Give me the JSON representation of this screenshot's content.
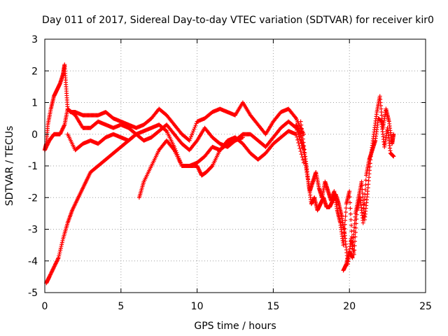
{
  "chart_data": {
    "type": "scatter",
    "title": "Day 011 of 2017, Sidereal Day-to-day VTEC variation (SDTVAR) for receiver kir0",
    "xlabel": "GPS time / hours",
    "ylabel": "SDTVAR / TECUs",
    "xlim": [
      0,
      25
    ],
    "ylim": [
      -5,
      3
    ],
    "xticks": [
      0,
      5,
      10,
      15,
      20,
      25
    ],
    "xtick_labels": [
      "0",
      "5",
      "10",
      "15",
      "20",
      "25"
    ],
    "yticks": [
      -5,
      -4,
      -3,
      -2,
      -1,
      0,
      1,
      2,
      3
    ],
    "ytick_labels": [
      "-5",
      "-4",
      "-3",
      "-2",
      "-1",
      "0",
      "1",
      "2",
      "3"
    ],
    "grid": true,
    "legend": "none",
    "marker": "+",
    "color": "#ff0000",
    "series": [
      {
        "x": [
          0.0,
          0.1,
          0.2,
          0.4,
          0.6,
          0.8,
          1.0,
          1.2,
          1.3,
          1.4,
          1.5,
          1.7,
          2.0,
          2.5,
          3.0,
          3.5,
          4.0,
          4.5,
          5.0,
          5.5,
          6.0,
          6.5,
          7.0,
          7.5,
          8.0,
          8.5,
          9.0,
          9.5,
          10.0,
          10.5,
          11.0,
          11.5,
          12.0,
          12.5,
          13.0,
          13.5,
          14.0,
          14.5,
          15.0,
          15.5,
          16.0,
          16.5,
          17.0
        ],
        "y": [
          -0.5,
          -0.3,
          0.3,
          0.8,
          1.2,
          1.4,
          1.6,
          1.9,
          2.2,
          1.5,
          0.8,
          0.7,
          0.7,
          0.6,
          0.6,
          0.6,
          0.7,
          0.5,
          0.4,
          0.3,
          0.2,
          0.3,
          0.5,
          0.8,
          0.6,
          0.3,
          0.0,
          -0.2,
          0.4,
          0.5,
          0.7,
          0.8,
          0.7,
          0.6,
          1.0,
          0.6,
          0.3,
          0.0,
          0.4,
          0.7,
          0.8,
          0.5,
          0.0
        ]
      },
      {
        "x": [
          0.0,
          0.3,
          0.6,
          1.0,
          1.3,
          1.5,
          2.0,
          2.5,
          3.0,
          3.5,
          4.0,
          4.5,
          5.0,
          5.5,
          6.0,
          6.5,
          7.0,
          7.5,
          8.0,
          8.5,
          9.0,
          9.5,
          10.0,
          10.5,
          11.0,
          11.5,
          12.0,
          12.5,
          13.0,
          13.5,
          14.0,
          14.5,
          15.0,
          15.5,
          16.0,
          16.5,
          17.0
        ],
        "y": [
          -0.5,
          -0.2,
          0.0,
          0.0,
          0.3,
          0.8,
          0.6,
          0.2,
          0.2,
          0.4,
          0.3,
          0.2,
          0.3,
          0.2,
          0.0,
          -0.2,
          -0.1,
          0.1,
          0.3,
          0.0,
          -0.3,
          -0.5,
          -0.2,
          0.2,
          -0.1,
          -0.3,
          -0.4,
          -0.2,
          0.0,
          0.0,
          -0.2,
          -0.4,
          -0.1,
          0.2,
          0.4,
          0.2,
          -0.5
        ]
      },
      {
        "x": [
          1.5,
          2.0,
          2.5,
          3.0,
          3.5,
          4.0,
          4.5,
          5.0,
          5.5,
          6.0,
          6.5,
          7.0,
          7.5,
          8.0,
          8.5,
          9.0,
          9.5,
          10.0,
          10.5,
          11.0,
          11.5,
          12.0,
          12.5,
          13.0,
          13.5,
          14.0,
          14.5,
          15.0,
          15.5,
          16.0,
          16.5,
          17.0
        ],
        "y": [
          0.0,
          -0.5,
          -0.3,
          -0.2,
          -0.3,
          -0.1,
          0.0,
          -0.1,
          -0.2,
          0.0,
          0.1,
          0.2,
          0.3,
          0.1,
          -0.4,
          -1.0,
          -1.0,
          -0.9,
          -0.7,
          -0.4,
          -0.5,
          -0.2,
          -0.1,
          -0.3,
          -0.6,
          -0.8,
          -0.6,
          -0.3,
          -0.1,
          0.1,
          0.0,
          -0.9
        ]
      },
      {
        "x": [
          0.1,
          0.3,
          0.6,
          0.9,
          1.2,
          1.5,
          1.8,
          2.2,
          2.6,
          3.0,
          3.5,
          4.0,
          4.5,
          5.0,
          5.5,
          6.0
        ],
        "y": [
          -4.7,
          -4.5,
          -4.2,
          -3.9,
          -3.3,
          -2.8,
          -2.4,
          -2.0,
          -1.6,
          -1.2,
          -1.0,
          -0.8,
          -0.6,
          -0.4,
          -0.2,
          0.0
        ]
      },
      {
        "x": [
          6.2,
          6.5,
          7.0,
          7.5,
          8.0,
          8.5,
          9.0,
          9.5,
          10.0,
          10.3,
          10.6,
          11.0,
          11.5,
          12.0,
          12.5,
          13.0
        ],
        "y": [
          -2.0,
          -1.5,
          -1.0,
          -0.5,
          -0.2,
          -0.5,
          -1.0,
          -1.0,
          -1.0,
          -1.3,
          -1.2,
          -1.0,
          -0.5,
          -0.3,
          -0.2,
          -0.1
        ]
      },
      {
        "x": [
          16.5,
          16.8,
          17.0,
          17.2,
          17.4,
          17.6,
          17.8,
          18.0,
          18.2,
          18.4,
          18.6,
          18.8,
          19.0,
          19.2,
          19.4,
          19.6,
          19.8,
          20.0,
          20.2,
          20.4,
          20.6,
          20.8,
          21.0,
          21.2,
          21.4,
          21.6,
          21.8,
          22.0,
          22.2,
          22.4,
          22.6,
          22.8,
          22.9
        ],
        "y": [
          0.3,
          0.0,
          -0.5,
          -1.2,
          -1.8,
          -1.5,
          -1.2,
          -1.7,
          -2.0,
          -1.5,
          -1.8,
          -2.1,
          -1.8,
          -2.4,
          -2.8,
          -3.5,
          -2.2,
          -1.8,
          -3.6,
          -2.5,
          -2.0,
          -1.5,
          -2.7,
          -1.8,
          -0.7,
          0.0,
          0.7,
          1.2,
          0.2,
          0.8,
          0.4,
          -0.3,
          0.0
        ]
      },
      {
        "x": [
          16.8,
          17.1,
          17.3,
          17.5,
          17.7,
          17.9,
          18.1,
          18.3,
          18.5,
          18.7,
          18.9,
          19.1,
          19.3,
          19.5,
          19.7,
          19.9,
          20.1,
          20.3,
          20.5,
          20.7,
          20.9,
          21.1,
          21.3,
          21.5,
          21.7,
          21.9,
          22.1,
          22.3,
          22.5,
          22.7,
          22.9
        ],
        "y": [
          0.4,
          -0.7,
          -1.5,
          -2.2,
          -2.0,
          -2.4,
          -2.2,
          -2.0,
          -2.3,
          -2.3,
          -2.1,
          -1.9,
          -2.2,
          -2.6,
          -3.2,
          -4.1,
          -3.3,
          -3.8,
          -2.4,
          -2.0,
          -2.8,
          -1.3,
          -0.8,
          -0.5,
          -0.2,
          0.5,
          0.4,
          -0.4,
          0.2,
          -0.6,
          -0.7
        ]
      },
      {
        "x": [
          19.6,
          19.8,
          20.0,
          20.2
        ],
        "y": [
          -4.3,
          -4.1,
          -3.7,
          -3.9
        ]
      }
    ]
  }
}
